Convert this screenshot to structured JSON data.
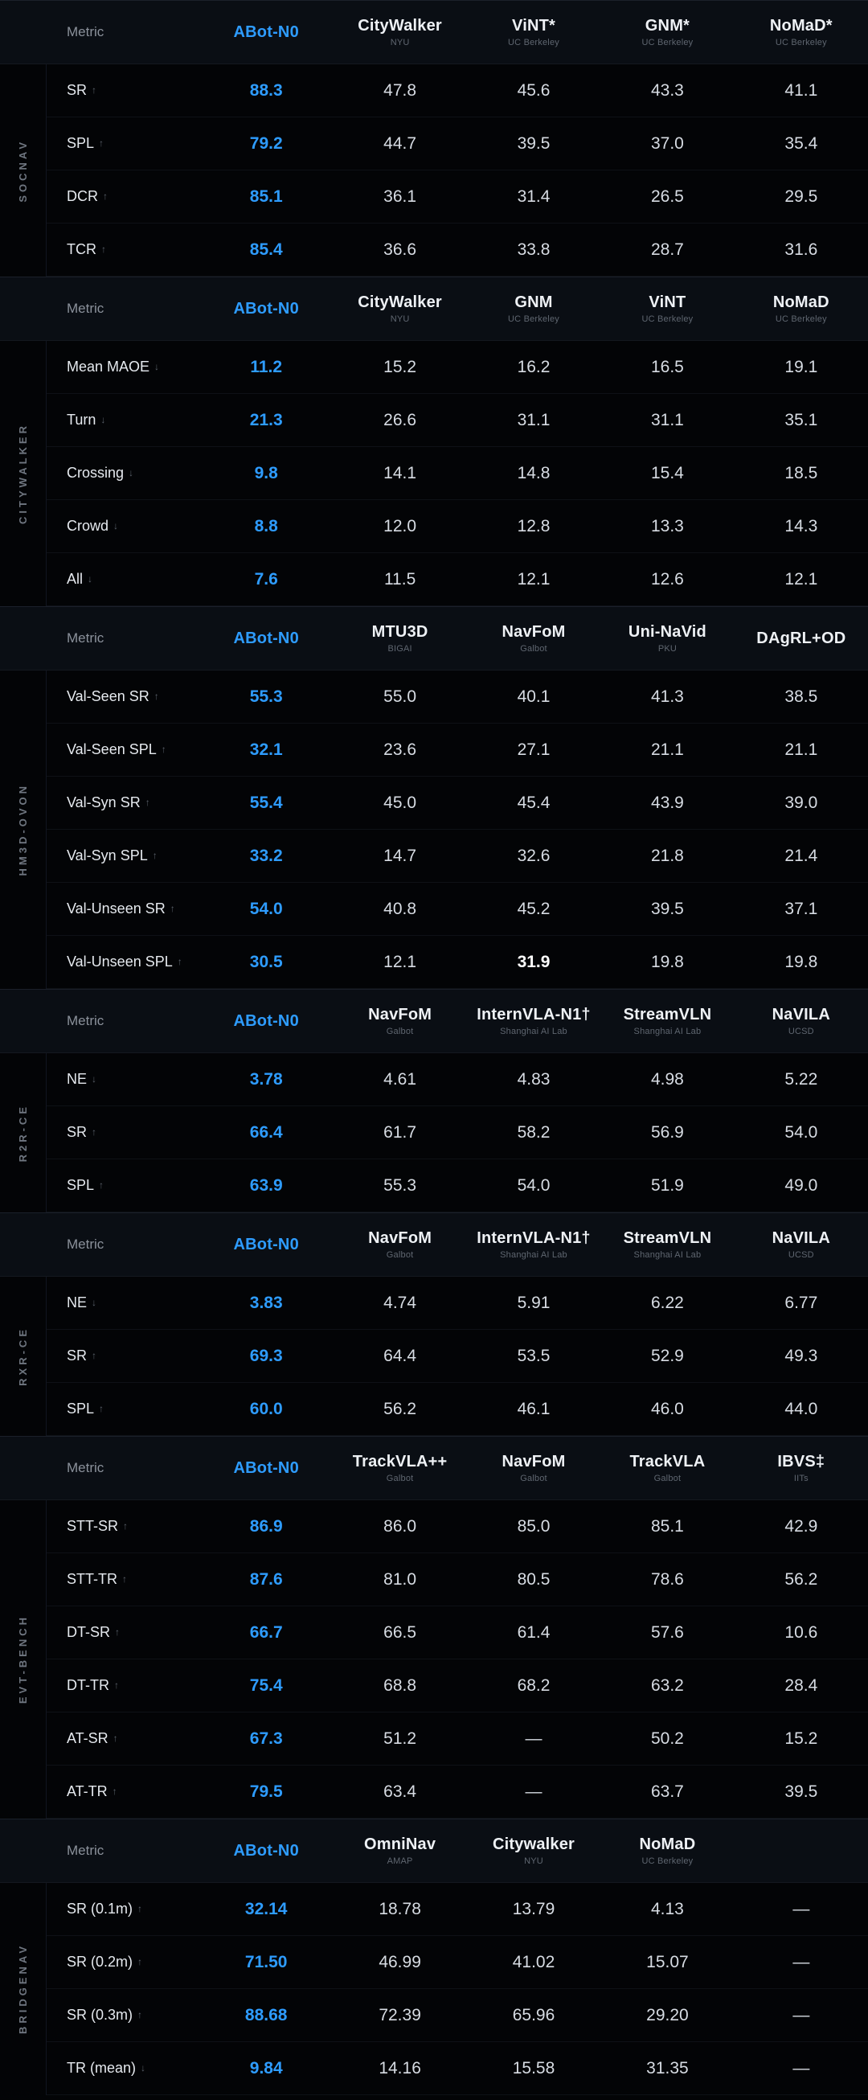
{
  "page": {
    "background": "#030406",
    "accent": "#2E9CFF",
    "text_color": "#D7DCE3"
  },
  "icons": {
    "up": "↑",
    "down": "↓"
  },
  "chart_data": [
    {
      "type": "table",
      "id": "socnav",
      "section_label": "SOCNAV",
      "metric_header": "Metric",
      "columns": [
        {
          "name": "ABot-N0",
          "sub": "",
          "accent": true
        },
        {
          "name": "CityWalker",
          "sub": "NYU"
        },
        {
          "name": "ViNT*",
          "sub": "UC Berkeley"
        },
        {
          "name": "GNM*",
          "sub": "UC Berkeley"
        },
        {
          "name": "NoMaD*",
          "sub": "UC Berkeley"
        }
      ],
      "rows": [
        {
          "metric": "SR",
          "dir": "up",
          "values": [
            "88.3",
            "47.8",
            "45.6",
            "43.3",
            "41.1"
          ]
        },
        {
          "metric": "SPL",
          "dir": "up",
          "values": [
            "79.2",
            "44.7",
            "39.5",
            "37.0",
            "35.4"
          ]
        },
        {
          "metric": "DCR",
          "dir": "up",
          "values": [
            "85.1",
            "36.1",
            "31.4",
            "26.5",
            "29.5"
          ]
        },
        {
          "metric": "TCR",
          "dir": "up",
          "values": [
            "85.4",
            "36.6",
            "33.8",
            "28.7",
            "31.6"
          ]
        }
      ]
    },
    {
      "type": "table",
      "id": "citywalker",
      "section_label": "CITYWALKER",
      "metric_header": "Metric",
      "columns": [
        {
          "name": "ABot-N0",
          "sub": "",
          "accent": true
        },
        {
          "name": "CityWalker",
          "sub": "NYU"
        },
        {
          "name": "GNM",
          "sub": "UC Berkeley"
        },
        {
          "name": "ViNT",
          "sub": "UC Berkeley"
        },
        {
          "name": "NoMaD",
          "sub": "UC Berkeley"
        }
      ],
      "rows": [
        {
          "metric": "Mean MAOE",
          "dir": "down",
          "values": [
            "11.2",
            "15.2",
            "16.2",
            "16.5",
            "19.1"
          ]
        },
        {
          "metric": "Turn",
          "dir": "down",
          "values": [
            "21.3",
            "26.6",
            "31.1",
            "31.1",
            "35.1"
          ]
        },
        {
          "metric": "Crossing",
          "dir": "down",
          "values": [
            "9.8",
            "14.1",
            "14.8",
            "15.4",
            "18.5"
          ]
        },
        {
          "metric": "Crowd",
          "dir": "down",
          "values": [
            "8.8",
            "12.0",
            "12.8",
            "13.3",
            "14.3"
          ]
        },
        {
          "metric": "All",
          "dir": "down",
          "values": [
            "7.6",
            "11.5",
            "12.1",
            "12.6",
            "12.1"
          ]
        }
      ]
    },
    {
      "type": "table",
      "id": "hm3d-ovon",
      "section_label": "HM3D-OVON",
      "metric_header": "Metric",
      "columns": [
        {
          "name": "ABot-N0",
          "sub": "",
          "accent": true
        },
        {
          "name": "MTU3D",
          "sub": "BIGAI"
        },
        {
          "name": "NavFoM",
          "sub": "Galbot"
        },
        {
          "name": "Uni-NaVid",
          "sub": "PKU"
        },
        {
          "name": "DAgRL+OD",
          "sub": ""
        }
      ],
      "rows": [
        {
          "metric": "Val-Seen SR",
          "dir": "up",
          "values": [
            "55.3",
            "55.0",
            "40.1",
            "41.3",
            "38.5"
          ]
        },
        {
          "metric": "Val-Seen SPL",
          "dir": "up",
          "values": [
            "32.1",
            "23.6",
            "27.1",
            "21.1",
            "21.1"
          ]
        },
        {
          "metric": "Val-Syn SR",
          "dir": "up",
          "values": [
            "55.4",
            "45.0",
            "45.4",
            "43.9",
            "39.0"
          ]
        },
        {
          "metric": "Val-Syn SPL",
          "dir": "up",
          "values": [
            "33.2",
            "14.7",
            "32.6",
            "21.8",
            "21.4"
          ]
        },
        {
          "metric": "Val-Unseen SR",
          "dir": "up",
          "values": [
            "54.0",
            "40.8",
            "45.2",
            "39.5",
            "37.1"
          ]
        },
        {
          "metric": "Val-Unseen SPL",
          "dir": "up",
          "values": [
            "30.5",
            "12.1",
            "31.9",
            "19.8",
            "19.8"
          ],
          "bold": 2
        }
      ]
    },
    {
      "type": "table",
      "id": "r2r-ce",
      "section_label": "R2R-CE",
      "metric_header": "Metric",
      "columns": [
        {
          "name": "ABot-N0",
          "sub": "",
          "accent": true
        },
        {
          "name": "NavFoM",
          "sub": "Galbot"
        },
        {
          "name": "InternVLA-N1†",
          "sub": "Shanghai AI Lab"
        },
        {
          "name": "StreamVLN",
          "sub": "Shanghai AI Lab"
        },
        {
          "name": "NaVILA",
          "sub": "UCSD"
        }
      ],
      "rows": [
        {
          "metric": "NE",
          "dir": "down",
          "values": [
            "3.78",
            "4.61",
            "4.83",
            "4.98",
            "5.22"
          ]
        },
        {
          "metric": "SR",
          "dir": "up",
          "values": [
            "66.4",
            "61.7",
            "58.2",
            "56.9",
            "54.0"
          ]
        },
        {
          "metric": "SPL",
          "dir": "up",
          "values": [
            "63.9",
            "55.3",
            "54.0",
            "51.9",
            "49.0"
          ]
        }
      ]
    },
    {
      "type": "table",
      "id": "rxr-ce",
      "section_label": "RXR-CE",
      "metric_header": "Metric",
      "columns": [
        {
          "name": "ABot-N0",
          "sub": "",
          "accent": true
        },
        {
          "name": "NavFoM",
          "sub": "Galbot"
        },
        {
          "name": "InternVLA-N1†",
          "sub": "Shanghai AI Lab"
        },
        {
          "name": "StreamVLN",
          "sub": "Shanghai AI Lab"
        },
        {
          "name": "NaVILA",
          "sub": "UCSD"
        }
      ],
      "rows": [
        {
          "metric": "NE",
          "dir": "down",
          "values": [
            "3.83",
            "4.74",
            "5.91",
            "6.22",
            "6.77"
          ]
        },
        {
          "metric": "SR",
          "dir": "up",
          "values": [
            "69.3",
            "64.4",
            "53.5",
            "52.9",
            "49.3"
          ]
        },
        {
          "metric": "SPL",
          "dir": "up",
          "values": [
            "60.0",
            "56.2",
            "46.1",
            "46.0",
            "44.0"
          ]
        }
      ]
    },
    {
      "type": "table",
      "id": "evt-bench",
      "section_label": "EVT-BENCH",
      "metric_header": "Metric",
      "columns": [
        {
          "name": "ABot-N0",
          "sub": "",
          "accent": true
        },
        {
          "name": "TrackVLA++",
          "sub": "Galbot"
        },
        {
          "name": "NavFoM",
          "sub": "Galbot"
        },
        {
          "name": "TrackVLA",
          "sub": "Galbot"
        },
        {
          "name": "IBVS‡",
          "sub": "IITs"
        }
      ],
      "rows": [
        {
          "metric": "STT-SR",
          "dir": "up",
          "values": [
            "86.9",
            "86.0",
            "85.0",
            "85.1",
            "42.9"
          ]
        },
        {
          "metric": "STT-TR",
          "dir": "up",
          "values": [
            "87.6",
            "81.0",
            "80.5",
            "78.6",
            "56.2"
          ]
        },
        {
          "metric": "DT-SR",
          "dir": "up",
          "values": [
            "66.7",
            "66.5",
            "61.4",
            "57.6",
            "10.6"
          ]
        },
        {
          "metric": "DT-TR",
          "dir": "up",
          "values": [
            "75.4",
            "68.8",
            "68.2",
            "63.2",
            "28.4"
          ]
        },
        {
          "metric": "AT-SR",
          "dir": "up",
          "values": [
            "67.3",
            "51.2",
            "—",
            "50.2",
            "15.2"
          ]
        },
        {
          "metric": "AT-TR",
          "dir": "up",
          "values": [
            "79.5",
            "63.4",
            "—",
            "63.7",
            "39.5"
          ]
        }
      ]
    },
    {
      "type": "table",
      "id": "bridgenav",
      "section_label": "BRIDGENAV",
      "metric_header": "Metric",
      "columns": [
        {
          "name": "ABot-N0",
          "sub": "",
          "accent": true
        },
        {
          "name": "OmniNav",
          "sub": "AMAP"
        },
        {
          "name": "Citywalker",
          "sub": "NYU"
        },
        {
          "name": "NoMaD",
          "sub": "UC Berkeley"
        },
        {
          "name": "",
          "sub": ""
        }
      ],
      "rows": [
        {
          "metric": "SR (0.1m)",
          "dir": "up",
          "values": [
            "32.14",
            "18.78",
            "13.79",
            "4.13",
            "—"
          ]
        },
        {
          "metric": "SR (0.2m)",
          "dir": "up",
          "values": [
            "71.50",
            "46.99",
            "41.02",
            "15.07",
            "—"
          ]
        },
        {
          "metric": "SR (0.3m)",
          "dir": "up",
          "values": [
            "88.68",
            "72.39",
            "65.96",
            "29.20",
            "—"
          ]
        },
        {
          "metric": "TR (mean)",
          "dir": "down",
          "values": [
            "9.84",
            "14.16",
            "15.58",
            "31.35",
            "—"
          ]
        }
      ]
    }
  ]
}
